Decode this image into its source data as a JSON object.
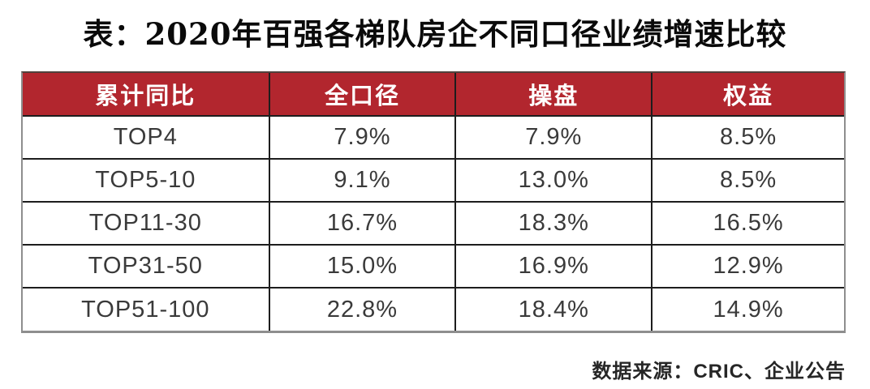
{
  "title": "表：2020年百强各梯队房企不同口径业绩增速比较",
  "chart_data": {
    "type": "table",
    "title": "表：2020年百强各梯队房企不同口径业绩增速比较",
    "columns": [
      "累计同比",
      "全口径",
      "操盘",
      "权益"
    ],
    "rows": [
      [
        "TOP4",
        "7.9%",
        "7.9%",
        "8.5%"
      ],
      [
        "TOP5-10",
        "9.1%",
        "13.0%",
        "8.5%"
      ],
      [
        "TOP11-30",
        "16.7%",
        "18.3%",
        "16.5%"
      ],
      [
        "TOP31-50",
        "15.0%",
        "16.9%",
        "12.9%"
      ],
      [
        "TOP51-100",
        "22.8%",
        "18.4%",
        "14.9%"
      ]
    ],
    "source_note": "数据来源：CRIC、企业公告"
  },
  "footer": {
    "source_label": "数据来源：CRIC、企业公告"
  },
  "colors": {
    "header_bg": "#B2262E",
    "header_text": "#FFFFFF",
    "grid_line": "#1D1D1D",
    "frame_border": "#8E8E8E",
    "cell_text": "#3A3A3A",
    "title_text": "#0A0A0A"
  }
}
